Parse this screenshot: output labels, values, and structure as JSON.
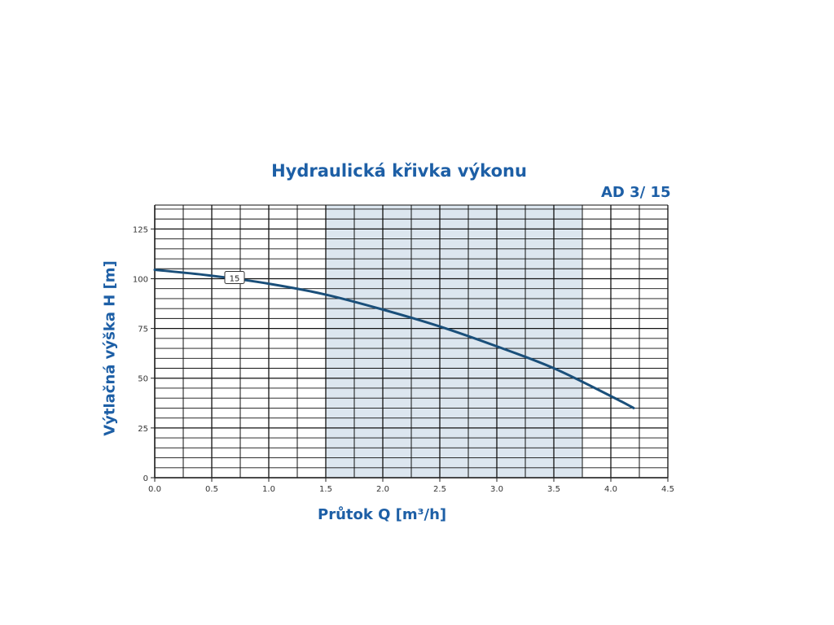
{
  "header": {
    "title": "Hydraulická křivka výkonu",
    "model": "AD 3/ 15"
  },
  "chart_data": {
    "type": "line",
    "title": "Hydraulická křivka výkonu",
    "subtitle": "AD 3/ 15",
    "xlabel": "Průtok Q [m³/h]",
    "ylabel": "Výtlačná výška H [m]",
    "xlim": [
      0,
      4.5
    ],
    "ylim": [
      0,
      137
    ],
    "x_ticks": [
      "0.0",
      "0.5",
      "1.0",
      "1.5",
      "2.0",
      "2.5",
      "3.0",
      "3.5",
      "4.0",
      "4.5"
    ],
    "y_ticks": [
      "0",
      "25",
      "50",
      "75",
      "100",
      "125"
    ],
    "grid": true,
    "highlight_range_x": [
      1.5,
      3.75
    ],
    "series": [
      {
        "name": "15",
        "x": [
          0.0,
          0.5,
          1.0,
          1.5,
          2.0,
          2.5,
          3.0,
          3.5,
          4.0,
          4.2
        ],
        "y": [
          104.5,
          101.5,
          97.5,
          92,
          84.5,
          76,
          66,
          55,
          41,
          35
        ]
      }
    ],
    "colors": {
      "curve": "#1a4f7a",
      "label": "#1d5fa6",
      "grid": "#111111",
      "band": "#dce6ef"
    }
  }
}
